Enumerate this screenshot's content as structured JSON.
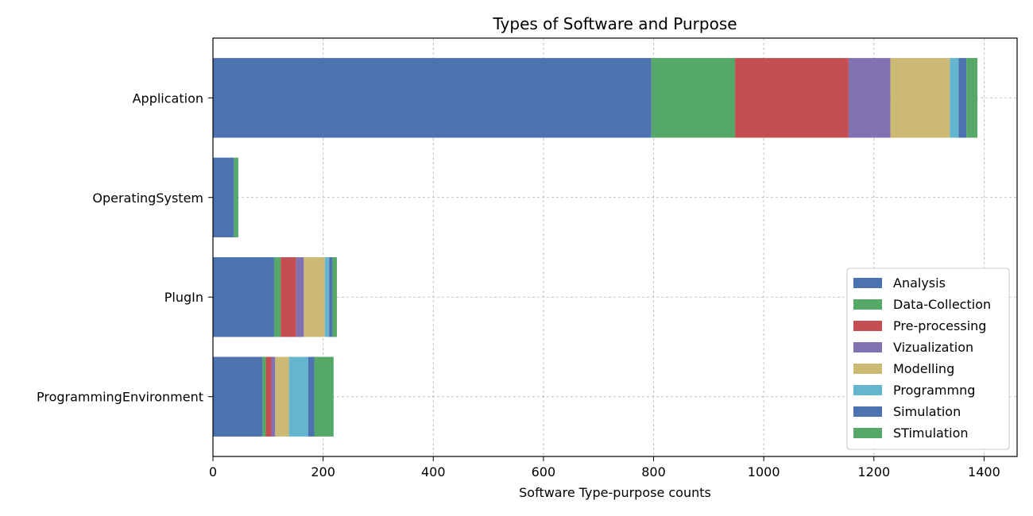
{
  "chart_data": {
    "type": "bar",
    "orientation": "horizontal",
    "stacked": true,
    "title": "Types of Software and Purpose",
    "xlabel": "Software Type-purpose counts",
    "ylabel": "",
    "xlim": [
      0,
      1460
    ],
    "xticks": [
      0,
      200,
      400,
      600,
      800,
      1000,
      1200,
      1400
    ],
    "categories": [
      "Application",
      "OperatingSystem",
      "PlugIn",
      "ProgrammingEnvironment"
    ],
    "grid": true,
    "legend_position": "lower-right",
    "series": [
      {
        "name": "Analysis",
        "color": "#4c72b0",
        "values": [
          796,
          38,
          111,
          90
        ]
      },
      {
        "name": "Data-Collection",
        "color": "#55a868",
        "values": [
          152,
          8,
          12,
          6
        ]
      },
      {
        "name": "Pre-processing",
        "color": "#c44e52",
        "values": [
          206,
          0,
          28,
          10
        ]
      },
      {
        "name": "Vizualization",
        "color": "#8172b2",
        "values": [
          76,
          0,
          14,
          7
        ]
      },
      {
        "name": "Modelling",
        "color": "#ccb974",
        "values": [
          108,
          0,
          38,
          25
        ]
      },
      {
        "name": "Programmng",
        "color": "#64b5cd",
        "values": [
          16,
          0,
          8,
          35
        ]
      },
      {
        "name": "Simulation",
        "color": "#4c72b0",
        "values": [
          14,
          0,
          6,
          11
        ]
      },
      {
        "name": "STimulation",
        "color": "#55a868",
        "values": [
          20,
          0,
          8,
          35
        ]
      }
    ]
  }
}
